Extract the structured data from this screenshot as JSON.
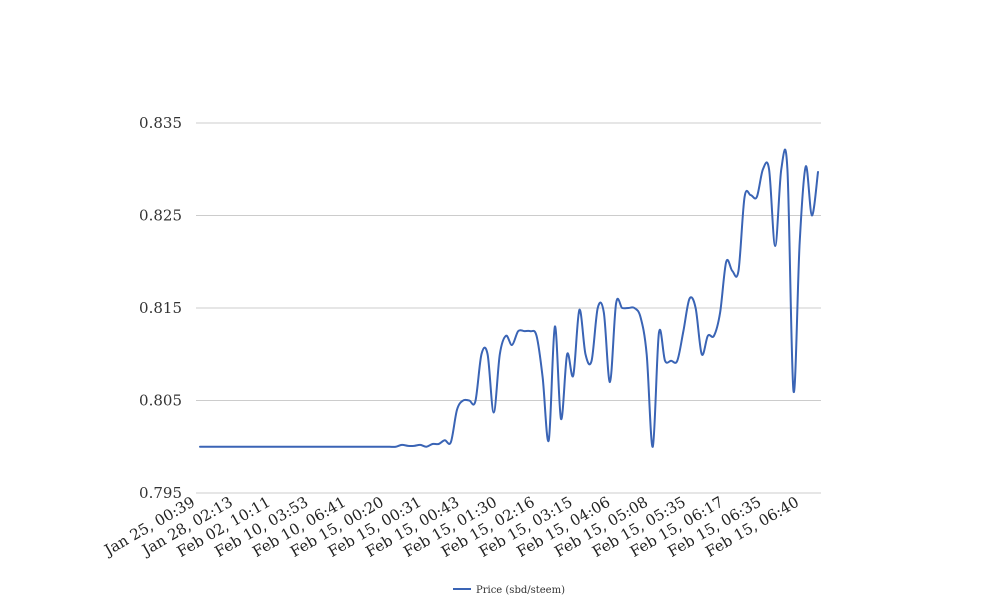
{
  "chart_data": {
    "type": "line",
    "title": "",
    "xlabel": "",
    "ylabel": "",
    "ylim": [
      0.795,
      0.835
    ],
    "yticks": [
      "0.795",
      "0.805",
      "0.815",
      "0.825",
      "0.835"
    ],
    "xtick_labels": [
      "Jan 25, 00:39",
      "Jan 28, 02:13",
      "Feb 02, 10:11",
      "Feb 10, 03:53",
      "Feb 10, 06:41",
      "Feb 15, 00:20",
      "Feb 15, 00:31",
      "Feb 15, 00:43",
      "Feb 15, 01:30",
      "Feb 15, 02:16",
      "Feb 15, 03:15",
      "Feb 15, 04:06",
      "Feb 15, 05:08",
      "Feb 15, 05:35",
      "Feb 15, 06:17",
      "Feb 15, 06:35",
      "Feb 15, 06:40"
    ],
    "grid": true,
    "legend_position": "bottom",
    "series": [
      {
        "name": "Price (sbd/steem)",
        "color": "#3a64b5",
        "values": [
          0.8,
          0.8,
          0.8,
          0.8,
          0.8,
          0.8,
          0.8,
          0.8,
          0.8,
          0.8,
          0.8,
          0.8,
          0.8,
          0.8,
          0.8,
          0.8,
          0.8,
          0.8,
          0.8,
          0.8,
          0.8,
          0.8,
          0.8,
          0.8,
          0.8,
          0.8,
          0.8,
          0.8,
          0.8,
          0.8,
          0.8,
          0.8,
          0.8,
          0.8002,
          0.8001,
          0.8001,
          0.8002,
          0.8,
          0.8003,
          0.8003,
          0.8007,
          0.8005,
          0.804,
          0.805,
          0.805,
          0.8049,
          0.81,
          0.81,
          0.8037,
          0.81,
          0.812,
          0.811,
          0.8125,
          0.8125,
          0.8125,
          0.812,
          0.8075,
          0.8007,
          0.813,
          0.803,
          0.81,
          0.8077,
          0.8148,
          0.81,
          0.8093,
          0.815,
          0.8145,
          0.807,
          0.8155,
          0.815,
          0.815,
          0.815,
          0.814,
          0.81,
          0.8,
          0.8123,
          0.8093,
          0.8093,
          0.8093,
          0.8125,
          0.816,
          0.815,
          0.81,
          0.812,
          0.812,
          0.8145,
          0.82,
          0.819,
          0.819,
          0.827,
          0.8272,
          0.827,
          0.83,
          0.83,
          0.8217,
          0.83,
          0.83,
          0.806,
          0.822,
          0.8303,
          0.825,
          0.8297
        ]
      }
    ]
  }
}
